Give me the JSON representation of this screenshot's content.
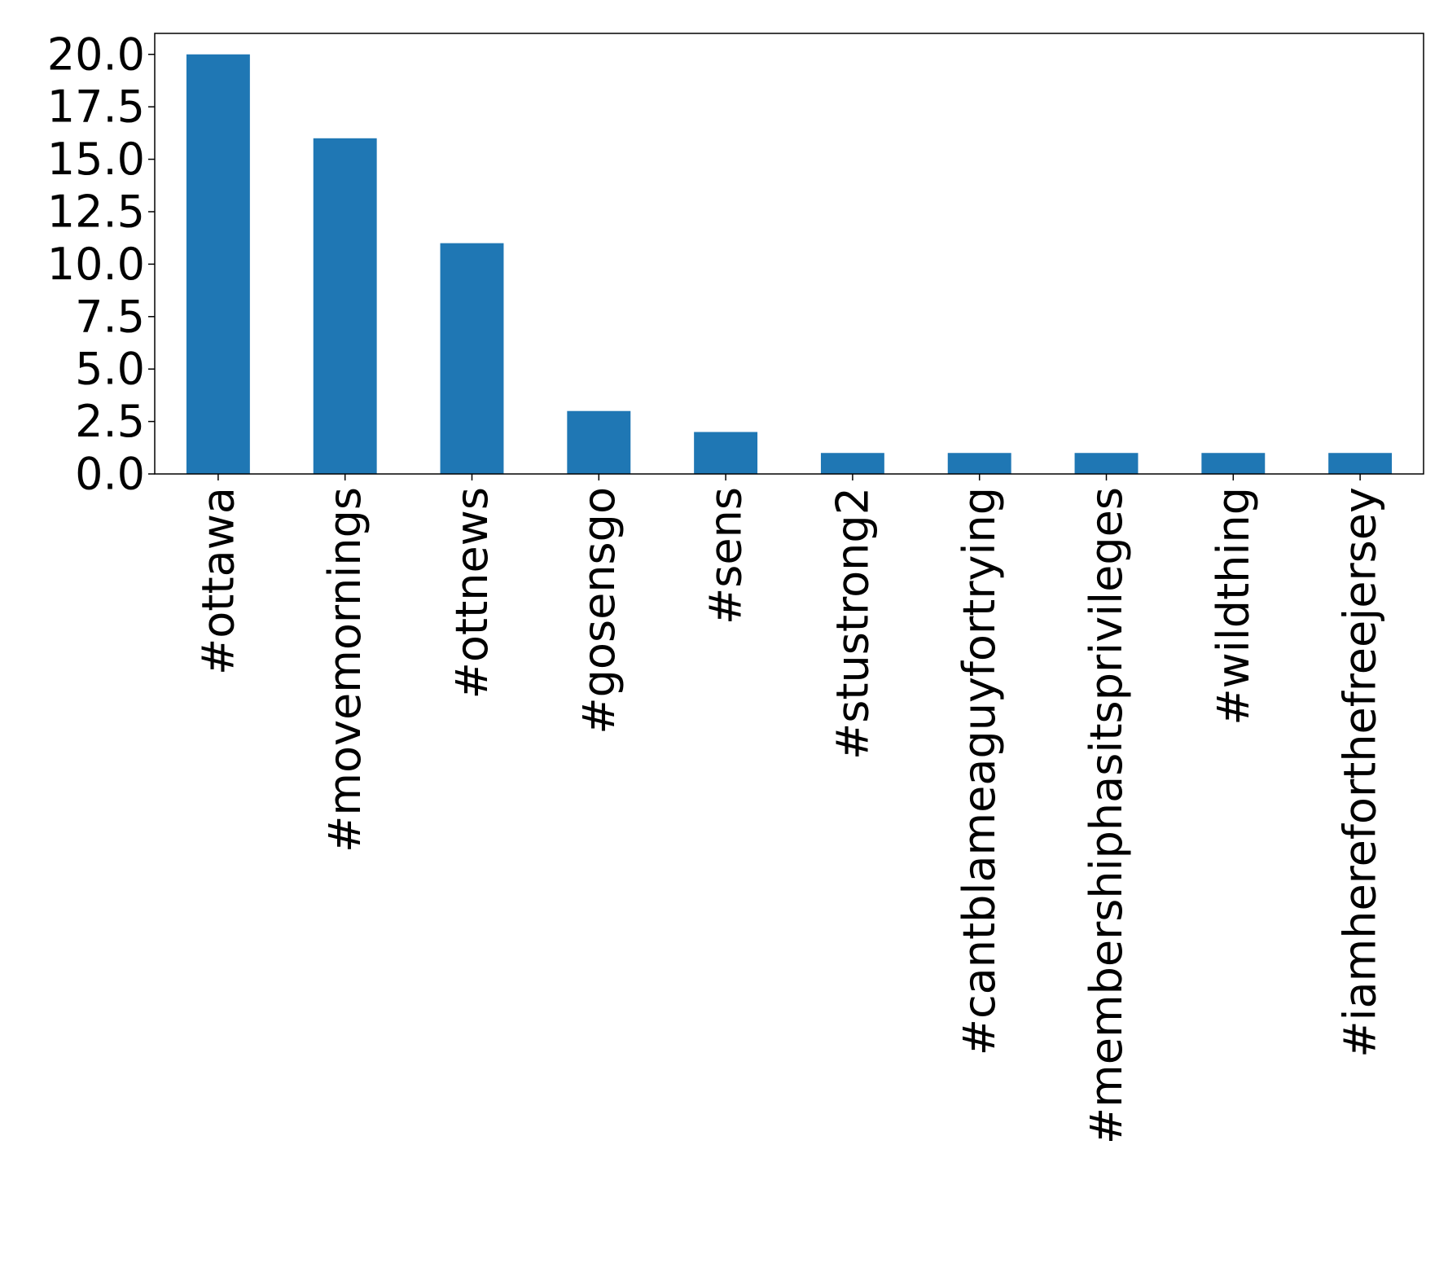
{
  "chart_data": {
    "type": "bar",
    "categories": [
      "#ottawa",
      "#movemornings",
      "#ottnews",
      "#gosensgo",
      "#sens",
      "#stustrong2",
      "#cantblameaguyfortrying",
      "#membershiphasitsprivileges",
      "#wildthing",
      "#iamhereforthefreejersey"
    ],
    "values": [
      20,
      16,
      11,
      3,
      2,
      1,
      1,
      1,
      1,
      1
    ],
    "ylim": [
      0,
      21
    ],
    "yticks": [
      0.0,
      2.5,
      5.0,
      7.5,
      10.0,
      12.5,
      15.0,
      17.5,
      20.0
    ],
    "ytick_labels": [
      "0.0",
      "2.5",
      "5.0",
      "7.5",
      "10.0",
      "12.5",
      "15.0",
      "17.5",
      "20.0"
    ],
    "title": "",
    "xlabel": "",
    "ylabel": "",
    "bar_color": "#1f77b4",
    "grid": false,
    "legend": "none"
  }
}
